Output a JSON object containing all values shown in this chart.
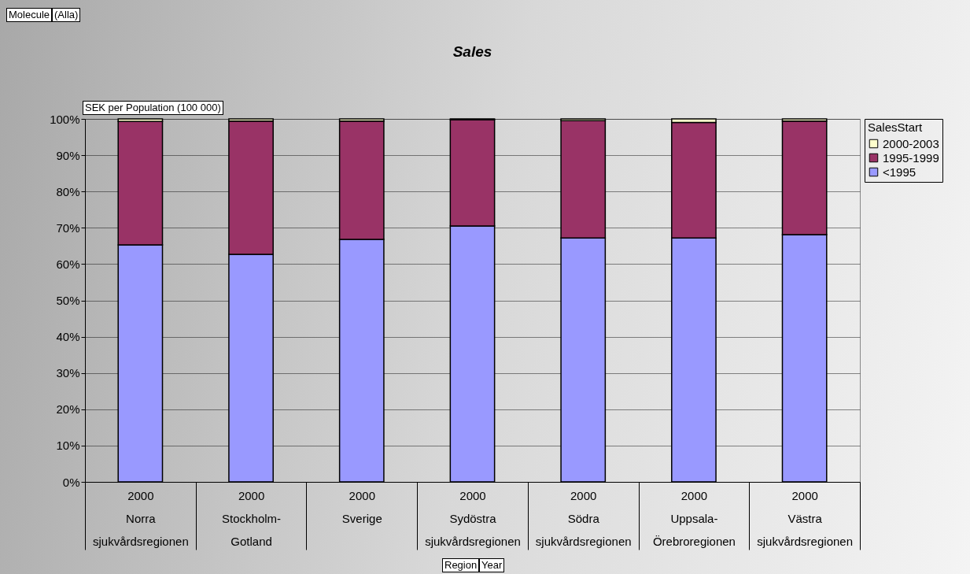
{
  "chart_data": {
    "type": "bar",
    "title": "Sales",
    "stacked": true,
    "legend": "right",
    "legend_title": "SalesStart",
    "grid": "y",
    "categories": [
      "2000\nNorra\nsjukvårdsregionen",
      "2000\nStockholm-\nGotland",
      "2000\nSverige",
      "2000\nSydöstra\nsjukvårdsregionen",
      "2000\nSödra\nsjukvårdsregionen",
      "2000\nUppsala-\nÖrebroregionen",
      "2000\nVästra\nsjukvårdsregionen"
    ],
    "ylim": [
      0,
      100
    ],
    "yticks": [
      {
        "value": 0,
        "label": "0%"
      },
      {
        "value": 10,
        "label": "10%"
      },
      {
        "value": 20,
        "label": "20%"
      },
      {
        "value": 30,
        "label": "30%"
      },
      {
        "value": 40,
        "label": "40%"
      },
      {
        "value": 50,
        "label": "50%"
      },
      {
        "value": 60,
        "label": "60%"
      },
      {
        "value": 70,
        "label": "70%"
      },
      {
        "value": 80,
        "label": "80%"
      },
      {
        "value": 90,
        "label": "90%"
      },
      {
        "value": 100,
        "label": "100%"
      }
    ],
    "series": [
      {
        "name": "<1995",
        "color": "#9999ff",
        "values": [
          65.3,
          62.7,
          66.8,
          70.5,
          67.2,
          67.2,
          68.1
        ]
      },
      {
        "name": "1995-1999",
        "color": "#993366",
        "values": [
          34.0,
          36.7,
          32.6,
          29.3,
          32.3,
          31.8,
          31.3
        ]
      },
      {
        "name": "2000-2003",
        "color": "#ffffcc",
        "values": [
          0.7,
          0.6,
          0.6,
          0.2,
          0.5,
          1.0,
          0.6
        ]
      }
    ],
    "annotations": [
      "Molecule",
      "(Alla)",
      "SEK per Population (100 000)",
      "Region",
      "Year"
    ]
  }
}
